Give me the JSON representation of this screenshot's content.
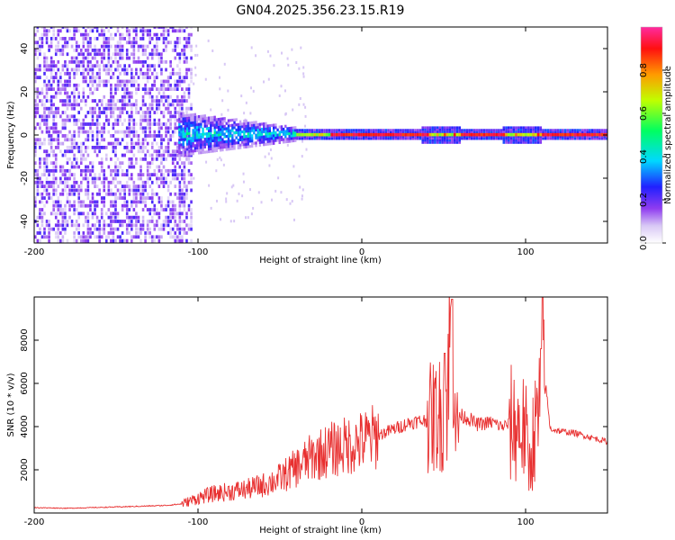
{
  "title": "GN04.2025.356.23.15.R19",
  "chart_data": [
    {
      "type": "heatmap",
      "title": "GN04.2025.356.23.15.R19",
      "xlabel": "Height of straight line (km)",
      "ylabel": "Frequency (Hz)",
      "xlim": [
        -200,
        150
      ],
      "ylim": [
        -50,
        50
      ],
      "x_ticks": [
        "-200",
        "-100",
        "0",
        "100"
      ],
      "y_ticks": [
        "-40",
        "-20",
        "0",
        "20",
        "40"
      ],
      "colorbar": {
        "label": "Normalized spectral amplitude",
        "range": [
          0,
          1
        ],
        "ticks": [
          "0.0",
          "0.2",
          "0.4",
          "0.6",
          "0.8"
        ]
      },
      "description_regions": [
        {
          "x_range": [
            -200,
            -105
          ],
          "freq_range": [
            -50,
            50
          ],
          "amplitude": 0.1
        },
        {
          "x_range": [
            -110,
            -40
          ],
          "freq_range": [
            -10,
            10
          ],
          "amplitude": 0.3
        },
        {
          "x_range": [
            -40,
            150
          ],
          "freq_range": [
            -1,
            1
          ],
          "amplitude": 0.95
        }
      ],
      "grid": false
    },
    {
      "type": "line",
      "xlabel": "Height of straight line (km)",
      "ylabel": "SNR (10 * v/v)",
      "xlim": [
        -200,
        150
      ],
      "ylim": [
        0,
        10000
      ],
      "x_ticks": [
        "-200",
        "-100",
        "0",
        "100"
      ],
      "y_ticks": [
        "2000",
        "4000",
        "6000",
        "8000"
      ],
      "color": "#e83030",
      "series": [
        {
          "x": [
            -200,
            -180,
            -160,
            -140,
            -120,
            -110,
            -100,
            -90,
            -80,
            -70,
            -60,
            -50,
            -40,
            -30,
            -20,
            -10,
            0,
            10,
            20,
            30,
            40,
            45,
            50,
            52,
            55,
            58,
            60,
            65,
            70,
            80,
            85,
            90,
            95,
            100,
            102,
            105,
            108,
            110,
            115,
            120,
            130,
            140,
            150
          ],
          "values": [
            250,
            220,
            260,
            300,
            350,
            420,
            700,
            900,
            1000,
            1100,
            1300,
            1600,
            2100,
            2600,
            2900,
            3100,
            3300,
            3600,
            3900,
            4200,
            4300,
            4500,
            4600,
            5200,
            9900,
            3600,
            4500,
            4400,
            4100,
            4200,
            4000,
            4100,
            4000,
            3800,
            2000,
            3700,
            4200,
            7600,
            3900,
            3800,
            3700,
            3500,
            3300
          ]
        }
      ],
      "grid": false
    }
  ]
}
